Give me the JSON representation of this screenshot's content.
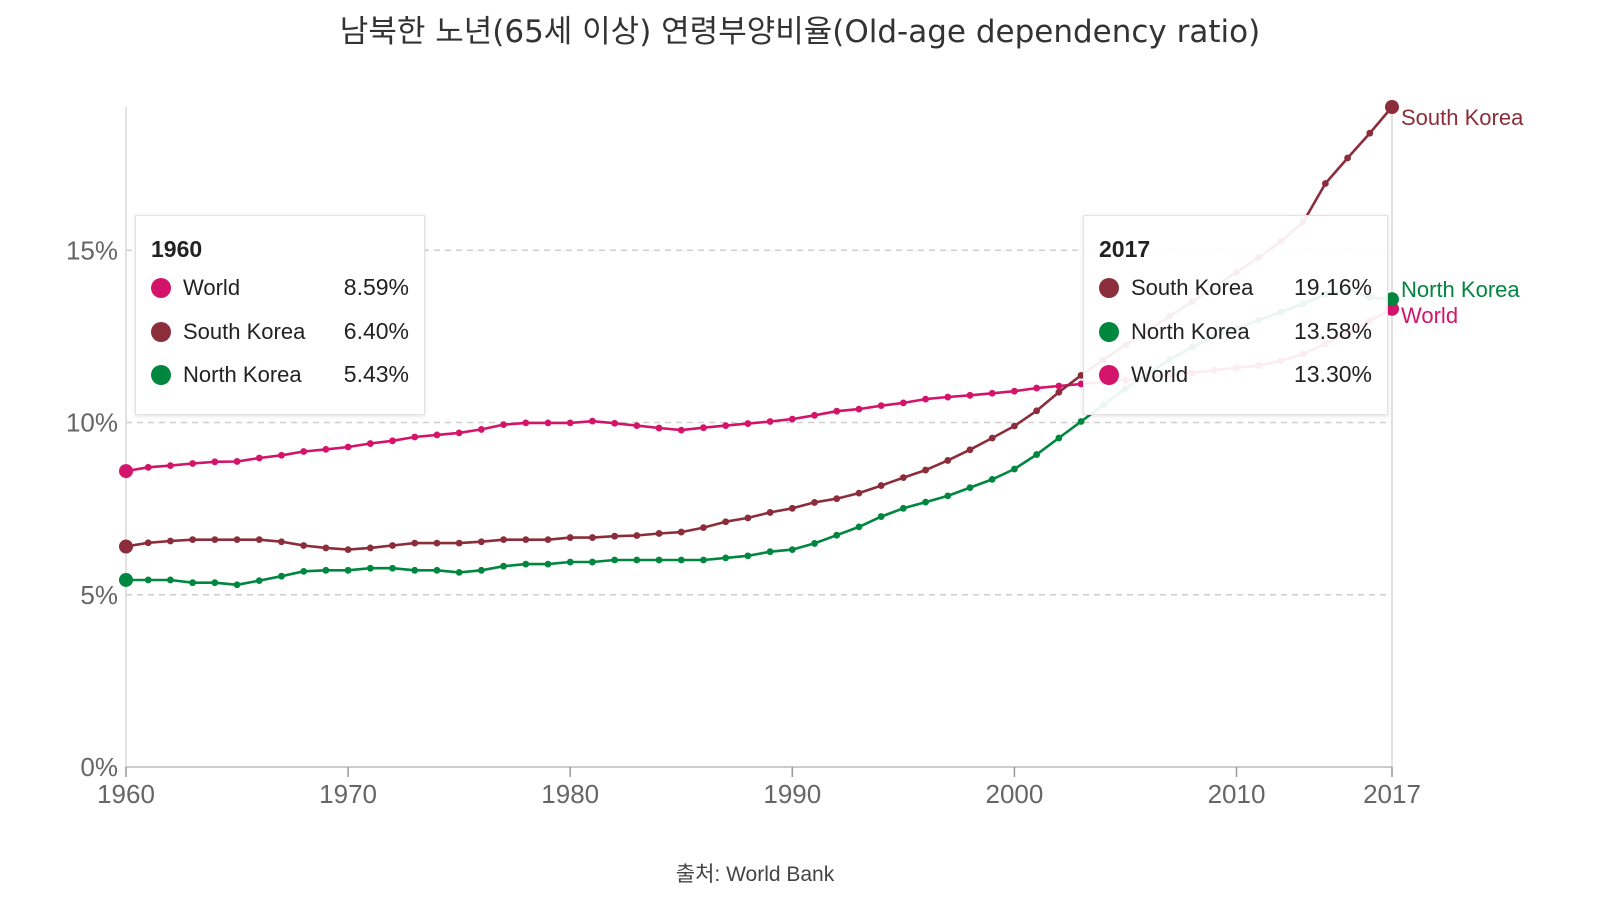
{
  "chart_data": {
    "type": "line",
    "title": "남북한 노년(65세 이상) 연령부양비율(Old-age dependency ratio)",
    "xlabel": "",
    "ylabel": "",
    "xlim": [
      1960,
      2017
    ],
    "ylim": [
      0,
      19.16
    ],
    "x_ticks": [
      1960,
      1970,
      1980,
      1990,
      2000,
      2010,
      2017
    ],
    "x_tick_labels": [
      "1960",
      "1970",
      "1980",
      "1990",
      "2000",
      "2010",
      "2017"
    ],
    "y_ticks": [
      0,
      5,
      10,
      15
    ],
    "y_tick_labels": [
      "0%",
      "5%",
      "10%",
      "15%"
    ],
    "grid": true,
    "x": [
      1960,
      1961,
      1962,
      1963,
      1964,
      1965,
      1966,
      1967,
      1968,
      1969,
      1970,
      1971,
      1972,
      1973,
      1974,
      1975,
      1976,
      1977,
      1978,
      1979,
      1980,
      1981,
      1982,
      1983,
      1984,
      1985,
      1986,
      1987,
      1988,
      1989,
      1990,
      1991,
      1992,
      1993,
      1994,
      1995,
      1996,
      1997,
      1998,
      1999,
      2000,
      2001,
      2002,
      2003,
      2004,
      2005,
      2006,
      2007,
      2008,
      2009,
      2010,
      2011,
      2012,
      2013,
      2014,
      2015,
      2016,
      2017
    ],
    "series": [
      {
        "name": "World",
        "color": "#d4146b",
        "values": [
          8.59,
          8.7,
          8.75,
          8.81,
          8.86,
          8.87,
          8.97,
          9.05,
          9.16,
          9.22,
          9.29,
          9.39,
          9.47,
          9.58,
          9.64,
          9.7,
          9.8,
          9.94,
          9.99,
          9.99,
          9.99,
          10.04,
          9.98,
          9.91,
          9.84,
          9.78,
          9.85,
          9.91,
          9.97,
          10.03,
          10.1,
          10.21,
          10.33,
          10.39,
          10.49,
          10.57,
          10.68,
          10.74,
          10.79,
          10.85,
          10.91,
          11.0,
          11.06,
          11.12,
          11.18,
          11.23,
          11.3,
          11.38,
          11.44,
          11.52,
          11.59,
          11.65,
          11.79,
          11.99,
          12.28,
          12.6,
          12.95,
          13.3
        ]
      },
      {
        "name": "South Korea",
        "color": "#8b2d3a",
        "values": [
          6.4,
          6.51,
          6.56,
          6.6,
          6.6,
          6.6,
          6.6,
          6.54,
          6.43,
          6.36,
          6.31,
          6.36,
          6.43,
          6.5,
          6.5,
          6.5,
          6.54,
          6.6,
          6.6,
          6.6,
          6.66,
          6.66,
          6.7,
          6.72,
          6.78,
          6.82,
          6.95,
          7.12,
          7.23,
          7.39,
          7.51,
          7.68,
          7.79,
          7.95,
          8.17,
          8.4,
          8.62,
          8.9,
          9.21,
          9.55,
          9.9,
          10.34,
          10.88,
          11.37,
          11.82,
          12.25,
          12.66,
          13.09,
          13.51,
          13.94,
          14.36,
          14.79,
          15.26,
          15.82,
          16.94,
          17.68,
          18.4,
          19.16
        ]
      },
      {
        "name": "North Korea",
        "color": "#00873f",
        "values": [
          5.43,
          5.43,
          5.43,
          5.35,
          5.35,
          5.29,
          5.41,
          5.54,
          5.68,
          5.71,
          5.71,
          5.77,
          5.77,
          5.71,
          5.71,
          5.65,
          5.71,
          5.83,
          5.89,
          5.89,
          5.95,
          5.95,
          6.01,
          6.01,
          6.01,
          6.01,
          6.01,
          6.07,
          6.13,
          6.25,
          6.31,
          6.49,
          6.73,
          6.97,
          7.27,
          7.51,
          7.69,
          7.87,
          8.11,
          8.35,
          8.65,
          9.07,
          9.55,
          10.03,
          10.51,
          10.99,
          11.41,
          11.83,
          12.19,
          12.49,
          12.73,
          12.97,
          13.21,
          13.45,
          13.72,
          13.85,
          13.63,
          13.58
        ]
      }
    ],
    "tooltip_left": {
      "year": "1960",
      "rows": [
        {
          "name": "World",
          "value": "8.59%",
          "color": "#d4146b"
        },
        {
          "name": "South Korea",
          "value": "6.40%",
          "color": "#8b2d3a"
        },
        {
          "name": "North Korea",
          "value": "5.43%",
          "color": "#00873f"
        }
      ]
    },
    "tooltip_right": {
      "year": "2017",
      "rows": [
        {
          "name": "South Korea",
          "value": "19.16%",
          "color": "#8b2d3a"
        },
        {
          "name": "North Korea",
          "value": "13.58%",
          "color": "#00873f"
        },
        {
          "name": "World",
          "value": "13.30%",
          "color": "#d4146b"
        }
      ]
    },
    "end_labels": [
      {
        "name": "South Korea",
        "color": "#8b2d3a"
      },
      {
        "name": "North Korea",
        "color": "#00873f"
      },
      {
        "name": "World",
        "color": "#d4146b"
      }
    ],
    "source": "출처: World Bank"
  }
}
